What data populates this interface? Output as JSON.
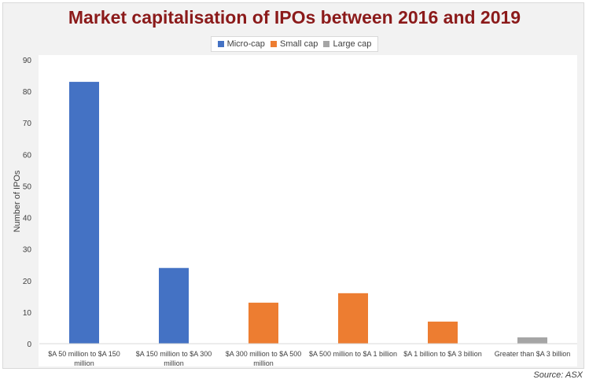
{
  "chart_data": {
    "type": "bar",
    "title": "Market capitalisation of IPOs between 2016 and 2019",
    "xlabel": "",
    "ylabel": "Number of IPOs",
    "ylim": [
      0,
      90
    ],
    "yticks": [
      0,
      10,
      20,
      30,
      40,
      50,
      60,
      70,
      80,
      90
    ],
    "grid": false,
    "legend_position": "top-center",
    "categories": [
      [
        "$A 50 million to $A 150",
        "million"
      ],
      [
        "$A 150 million to $A 300",
        "million"
      ],
      [
        "$A 300 million to $A 500",
        "million"
      ],
      [
        "$A 500 million to $A 1 billion"
      ],
      [
        "$A 1 billion to $A 3 billion"
      ],
      [
        "Greater than $A 3 billion"
      ]
    ],
    "values": [
      83,
      24,
      13,
      16,
      7,
      2
    ],
    "bar_groups": [
      "Micro-cap",
      "Micro-cap",
      "Small cap",
      "Small cap",
      "Small cap",
      "Large cap"
    ],
    "legend": [
      {
        "name": "Micro-cap",
        "color": "#4472c4"
      },
      {
        "name": "Small cap",
        "color": "#ed7d31"
      },
      {
        "name": "Large cap",
        "color": "#a5a5a5"
      }
    ]
  },
  "source": "Source: ASX"
}
